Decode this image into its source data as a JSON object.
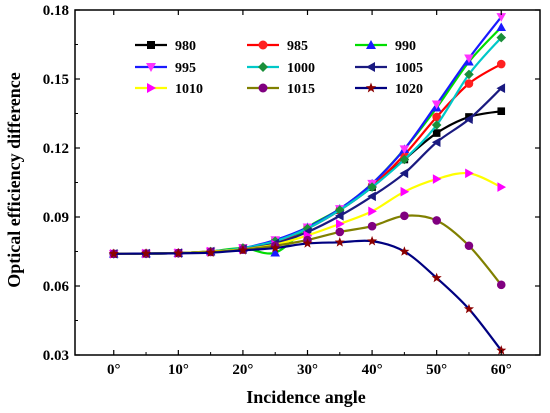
{
  "chart_data": {
    "type": "line",
    "xlabel": "Incidence angle",
    "ylabel": "Optical efficiency difference",
    "x": [
      0,
      5,
      10,
      15,
      20,
      25,
      30,
      35,
      40,
      45,
      50,
      55,
      60
    ],
    "x_tick_values": [
      0,
      10,
      20,
      30,
      40,
      50,
      60
    ],
    "x_tick_labels": [
      "0°",
      "10°",
      "20°",
      "30°",
      "40°",
      "50°",
      "60°"
    ],
    "xlim": [
      -6,
      66
    ],
    "ylim": [
      0.03,
      0.18
    ],
    "y_tick_values": [
      0.03,
      0.06,
      0.09,
      0.12,
      0.15,
      0.18
    ],
    "y_tick_labels": [
      "0.03",
      "0.06",
      "0.09",
      "0.12",
      "0.15",
      "0.18"
    ],
    "legend_position": "top-left",
    "grid": false,
    "series": [
      {
        "name": "980",
        "color": "#000000",
        "marker": "square",
        "values": [
          0.074,
          0.0741,
          0.0743,
          0.075,
          0.0765,
          0.079,
          0.085,
          0.093,
          0.103,
          0.115,
          0.1265,
          0.1335,
          0.136
        ]
      },
      {
        "name": "985",
        "color": "#ff2020",
        "marker": "circle",
        "values": [
          0.074,
          0.0741,
          0.0743,
          0.075,
          0.0765,
          0.079,
          0.085,
          0.093,
          0.1035,
          0.117,
          0.1335,
          0.148,
          0.1565
        ]
      },
      {
        "name": "990",
        "color": "#1a1aff",
        "marker": "triangle-up",
        "values": [
          0.074,
          0.0741,
          0.0743,
          0.075,
          0.0765,
          0.0745,
          0.0855,
          0.0935,
          0.1045,
          0.1195,
          0.1375,
          0.1575,
          0.1725
        ]
      },
      {
        "name": "995",
        "color": "#ff33ff",
        "marker": "triangle-down",
        "values": [
          0.074,
          0.0741,
          0.0743,
          0.075,
          0.0765,
          0.08,
          0.0855,
          0.0935,
          0.1045,
          0.1195,
          0.139,
          0.159,
          0.177
        ]
      },
      {
        "name": "1000",
        "color": "#1a8f3a",
        "marker": "diamond",
        "values": [
          0.074,
          0.0741,
          0.0743,
          0.075,
          0.0765,
          0.0795,
          0.085,
          0.093,
          0.103,
          0.115,
          0.13,
          0.152,
          0.168
        ]
      },
      {
        "name": "1005",
        "color": "#1a1a80",
        "marker": "triangle-left",
        "values": [
          0.074,
          0.0741,
          0.0743,
          0.075,
          0.076,
          0.0785,
          0.0835,
          0.0905,
          0.099,
          0.109,
          0.1225,
          0.1325,
          0.146
        ]
      },
      {
        "name": "1010",
        "color": "#ff00ff",
        "marker": "triangle-right",
        "values": [
          0.074,
          0.0741,
          0.0743,
          0.075,
          0.076,
          0.078,
          0.082,
          0.087,
          0.0925,
          0.101,
          0.1065,
          0.109,
          0.103
        ]
      },
      {
        "name": "1015",
        "color": "#800080",
        "marker": "circle",
        "values": [
          0.074,
          0.0741,
          0.0743,
          0.0748,
          0.0758,
          0.0775,
          0.08,
          0.0835,
          0.086,
          0.0905,
          0.0885,
          0.0775,
          0.0605
        ]
      },
      {
        "name": "1020",
        "color": "#8b0000",
        "marker": "star",
        "values": [
          0.074,
          0.0741,
          0.0742,
          0.0745,
          0.0755,
          0.0765,
          0.0785,
          0.079,
          0.0795,
          0.075,
          0.0635,
          0.05,
          0.032
        ]
      }
    ],
    "line_colors": {
      "980": "#000000",
      "985": "#ff0000",
      "990": "#00dd00",
      "995": "#1a1aff",
      "1000": "#00c8c8",
      "1005": "#1a1a80",
      "1010": "#ffff00",
      "1015": "#808000",
      "1020": "#000080"
    },
    "marker_colors": {
      "980": "#000000",
      "985": "#ff2020",
      "990": "#1a1aff",
      "995": "#ff33ff",
      "1000": "#1a8f3a",
      "1005": "#1a1a80",
      "1010": "#ff00ff",
      "1015": "#800080",
      "1020": "#8b0000"
    }
  }
}
